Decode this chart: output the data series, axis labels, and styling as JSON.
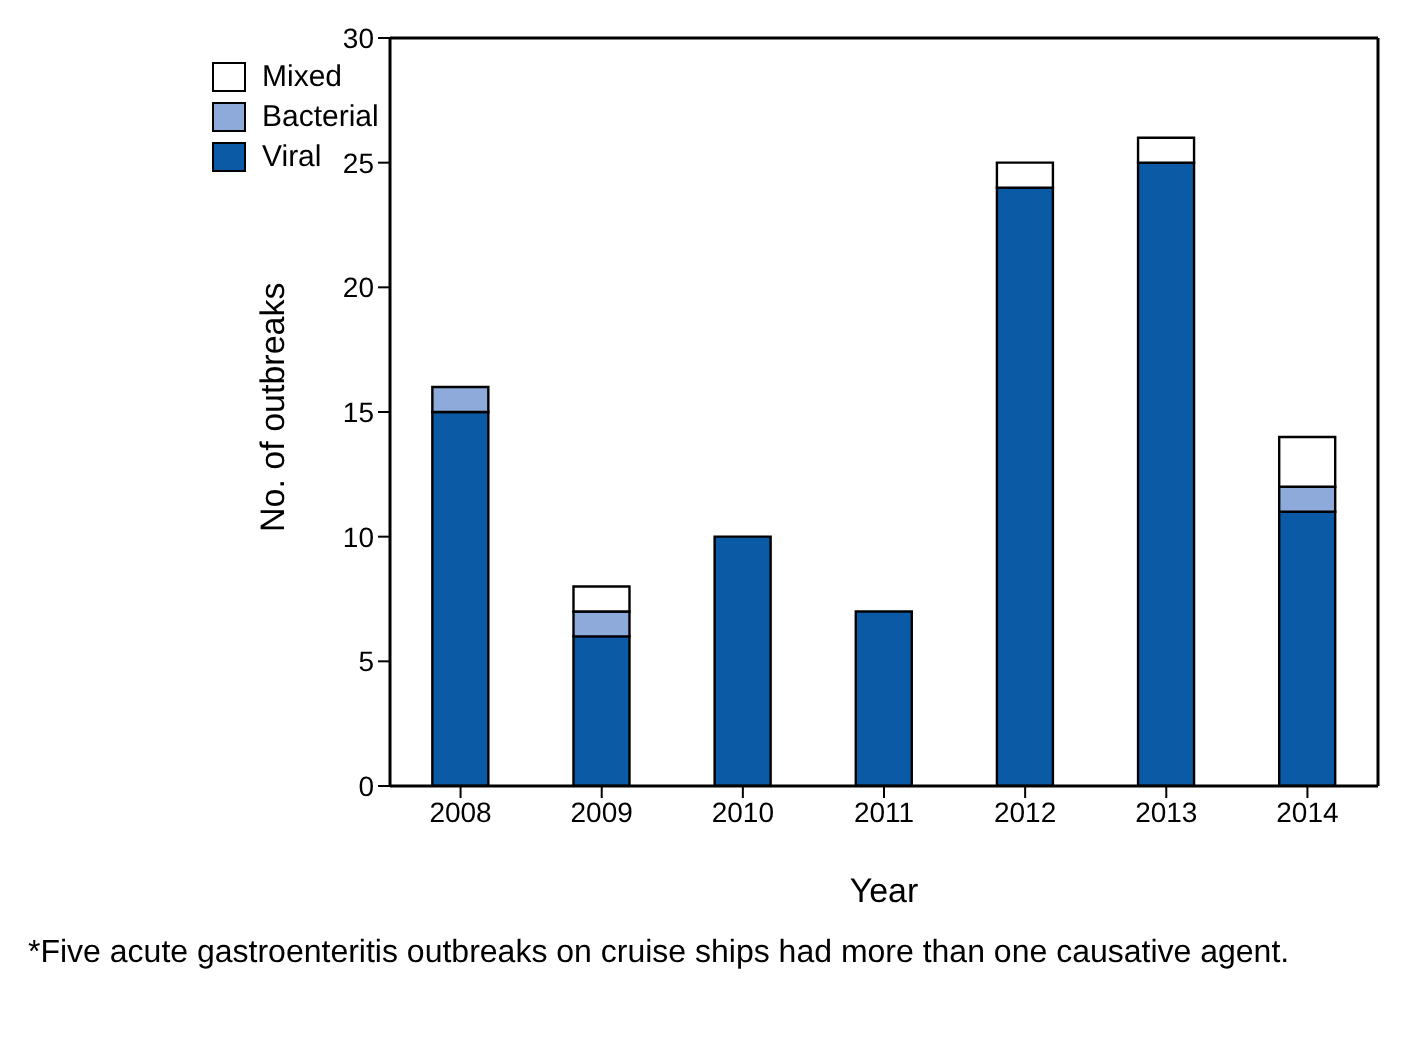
{
  "chart_data": {
    "type": "bar",
    "stacked": true,
    "xlabel": "Year",
    "ylabel": "No. of outbreaks",
    "categories": [
      "2008",
      "2009",
      "2010",
      "2011",
      "2012",
      "2013",
      "2014"
    ],
    "series": [
      {
        "name": "Viral",
        "color": "#0b5aa6",
        "values": [
          15,
          6,
          10,
          7,
          24,
          25,
          11
        ]
      },
      {
        "name": "Bacterial",
        "color": "#8eaadb",
        "values": [
          1,
          1,
          0,
          0,
          0,
          0,
          1
        ]
      },
      {
        "name": "Mixed",
        "color": "#ffffff",
        "values": [
          0,
          1,
          0,
          0,
          1,
          1,
          2
        ]
      }
    ],
    "ylim": [
      0,
      30
    ],
    "yticks": [
      0,
      5,
      10,
      15,
      20,
      25,
      30
    ],
    "grid": false,
    "legend": "top left",
    "annotations": [
      "*Five acute gastroenteritis outbreaks on cruise ships had more than one causative agent."
    ]
  }
}
